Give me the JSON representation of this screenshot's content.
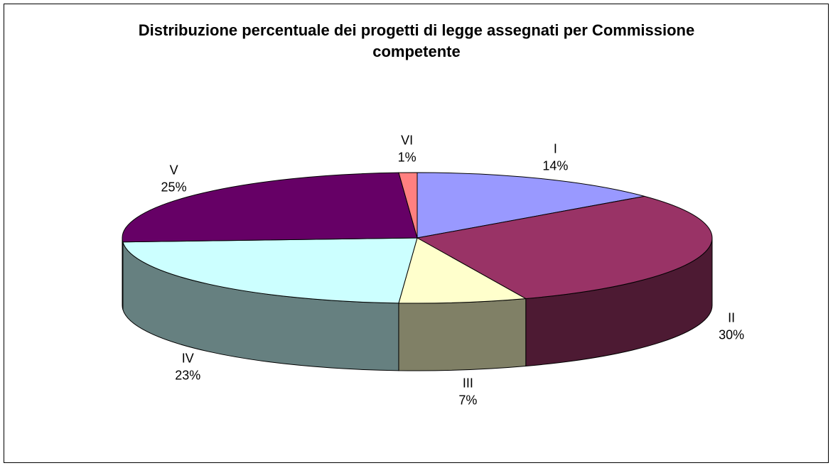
{
  "chart_data": {
    "type": "pie3d",
    "title": "Distribuzione percentuale dei progetti di legge assegnati per Commissione competente",
    "categories": [
      "I",
      "II",
      "III",
      "IV",
      "V",
      "VI"
    ],
    "values": [
      14,
      30,
      7,
      23,
      25,
      1
    ],
    "value_labels": [
      "14%",
      "30%",
      "7%",
      "23%",
      "25%",
      "1%"
    ],
    "colors": [
      "#9999ff",
      "#993366",
      "#ffffcc",
      "#ccffff",
      "#660066",
      "#ff8080"
    ]
  }
}
